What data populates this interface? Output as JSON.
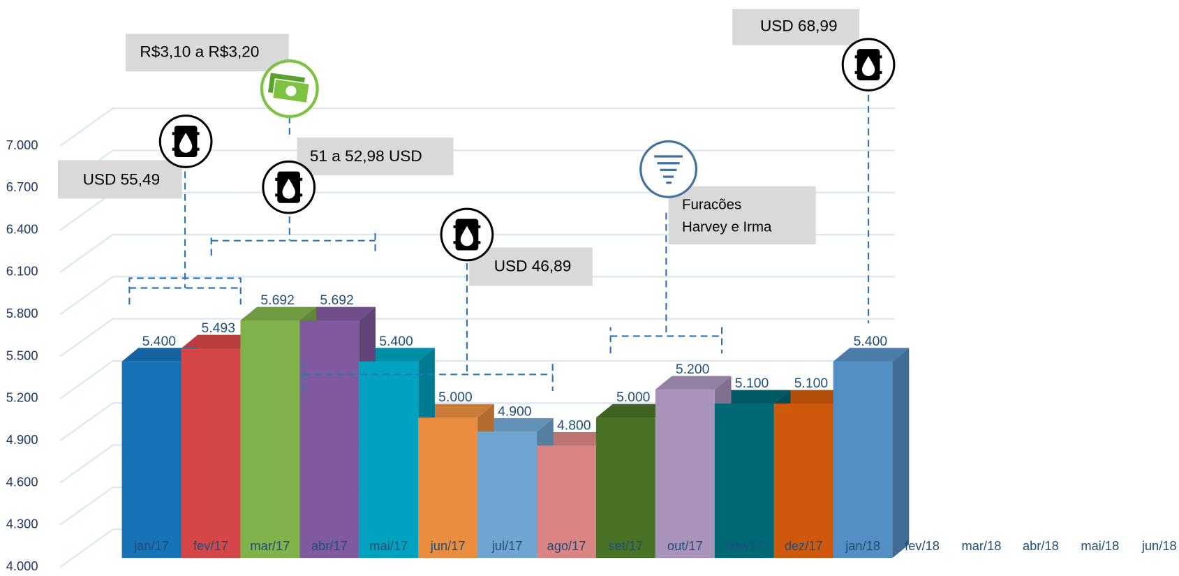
{
  "chart_data": {
    "type": "bar3d",
    "categories": [
      "jan/17",
      "fev/17",
      "mar/17",
      "abr/17",
      "mai/17",
      "jun/17",
      "jul/17",
      "ago/17",
      "set/17",
      "out/17",
      "nov/17",
      "dez/17",
      "jan/18",
      "fev/18",
      "mar/18",
      "abr/18",
      "mai/18",
      "jun/18"
    ],
    "values": [
      5400,
      5493,
      5692,
      5692,
      5400,
      5000,
      4900,
      4800,
      5000,
      5200,
      5100,
      5100,
      5400,
      null,
      null,
      null,
      null,
      null
    ],
    "value_labels": [
      "5.400",
      "5.493",
      "5.692",
      "5.692",
      "5.400",
      "5.000",
      "4.900",
      "4.800",
      "5.000",
      "5.200",
      "5.100",
      "5.100",
      "5.400",
      null,
      null,
      null,
      null,
      null
    ],
    "colors": [
      "#1a7cc8",
      "#e84c4c",
      "#8cc152",
      "#8b62ad",
      "#00b0d0",
      "#ff9a45",
      "#7ab4e4",
      "#ee9090",
      "#507c2a",
      "#b9a0cb",
      "#00707f",
      "#e0600c",
      "#5b9bd5",
      null,
      null,
      null,
      null,
      null
    ],
    "ylim": [
      4000,
      7000
    ],
    "yticks": [
      {
        "value": 4000,
        "label": "4.000"
      },
      {
        "value": 4300,
        "label": "4.300"
      },
      {
        "value": 4600,
        "label": "4.600"
      },
      {
        "value": 4900,
        "label": "4.900"
      },
      {
        "value": 5200,
        "label": "5.200"
      },
      {
        "value": 5500,
        "label": "5.500"
      },
      {
        "value": 5800,
        "label": "5.800"
      },
      {
        "value": 6100,
        "label": "6.100"
      },
      {
        "value": 6400,
        "label": "6.400"
      },
      {
        "value": 6700,
        "label": "6.700"
      },
      {
        "value": 7000,
        "label": "7.000"
      }
    ],
    "grid": true,
    "annotations": [
      "R$3,10 a R$3,20",
      "USD 68,99",
      "51 a 52,98 USD",
      "USD 55,49",
      "USD 46,89",
      "Furacões",
      "Harvey e Irma"
    ]
  }
}
